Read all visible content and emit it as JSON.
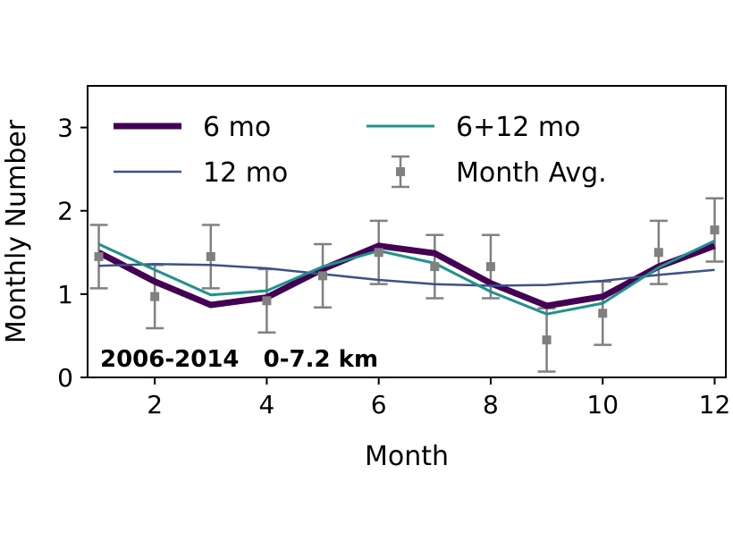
{
  "chart_data": {
    "type": "line",
    "xlabel": "Month",
    "ylabel": "Monthly Number",
    "xlim": [
      0.8,
      12.2
    ],
    "ylim": [
      0,
      3.5
    ],
    "x_ticks": [
      2,
      4,
      6,
      8,
      10,
      12
    ],
    "y_ticks": [
      0,
      1,
      2,
      3
    ],
    "x_tick_labels": [
      "2",
      "4",
      "6",
      "8",
      "10",
      "12"
    ],
    "y_tick_labels": [
      "0",
      "1",
      "2",
      "3"
    ],
    "annotation": "2006-2014   0-7.2 km",
    "legend": {
      "location": "top",
      "columns": 2
    },
    "months": [
      1,
      2,
      3,
      4,
      5,
      6,
      7,
      8,
      9,
      10,
      11,
      12
    ],
    "series": [
      {
        "name": "6 mo",
        "color": "#440154",
        "values": [
          1.5,
          1.15,
          0.87,
          0.96,
          1.3,
          1.58,
          1.49,
          1.13,
          0.86,
          0.97,
          1.33,
          1.58
        ]
      },
      {
        "name": "12 mo",
        "color": "#3b528b",
        "values": [
          1.34,
          1.36,
          1.35,
          1.31,
          1.24,
          1.17,
          1.12,
          1.1,
          1.11,
          1.16,
          1.23,
          1.29
        ]
      },
      {
        "name": "6+12 mo",
        "color": "#21918c",
        "values": [
          1.6,
          1.29,
          0.99,
          1.04,
          1.33,
          1.52,
          1.37,
          1.03,
          0.76,
          0.89,
          1.32,
          1.64
        ]
      },
      {
        "name": "Month Avg.",
        "color": "#808080",
        "values": [
          1.45,
          0.97,
          1.45,
          0.92,
          1.22,
          1.5,
          1.33,
          1.33,
          0.45,
          0.77,
          1.5,
          1.77
        ],
        "errors": [
          0.38,
          0.38,
          0.38,
          0.38,
          0.38,
          0.38,
          0.38,
          0.38,
          0.38,
          0.38,
          0.38,
          0.38
        ]
      }
    ]
  }
}
